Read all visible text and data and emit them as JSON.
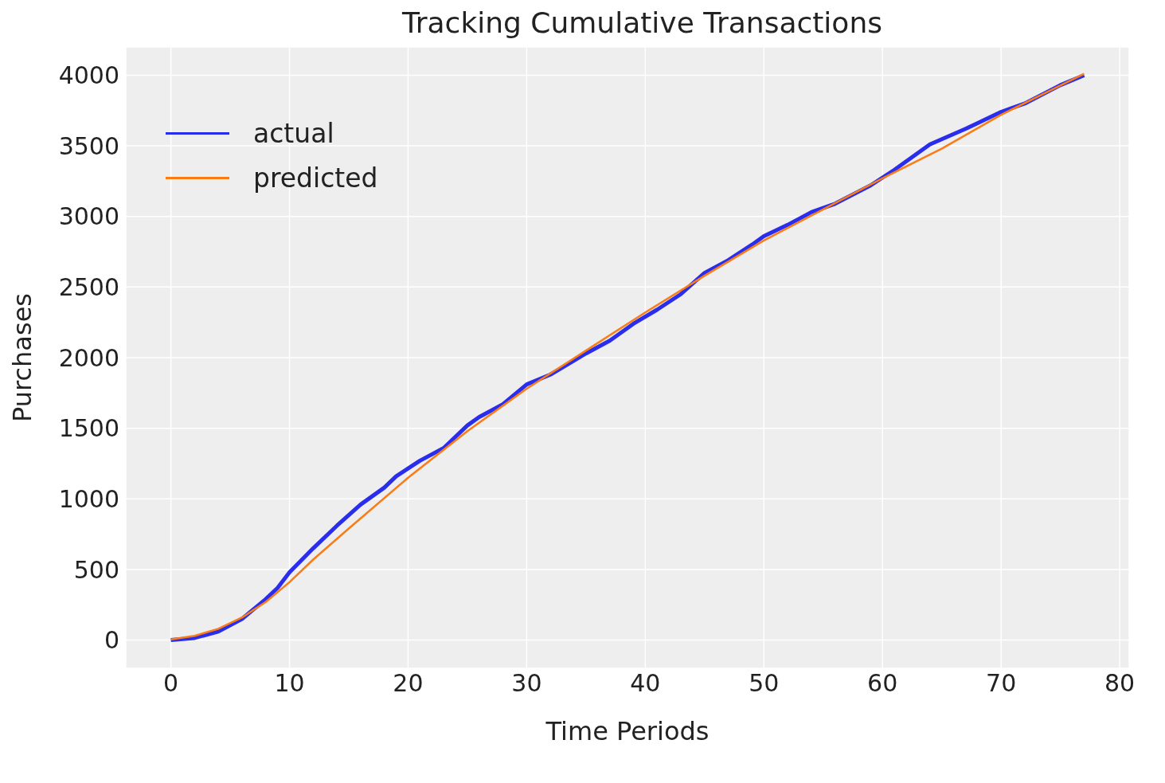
{
  "chart_data": {
    "type": "line",
    "title": "Tracking Cumulative Transactions",
    "xlabel": "Time Periods",
    "ylabel": "Purchases",
    "xlim": [
      -3.8,
      80.8
    ],
    "xticks": [
      0,
      10,
      20,
      30,
      40,
      50,
      60,
      70,
      80
    ],
    "ylim": [
      -200,
      4200
    ],
    "yticks": [
      0,
      500,
      1000,
      1500,
      2000,
      2500,
      3000,
      3500,
      4000
    ],
    "grid": true,
    "legend": "top left",
    "marker": "none",
    "line_style": "solid",
    "series": [
      {
        "name": "actual",
        "color": "#2a2eec",
        "x": [
          0,
          2,
          4,
          6,
          8,
          9,
          10,
          12,
          14,
          16,
          18,
          19,
          21,
          23,
          25,
          26,
          28,
          30,
          32,
          34,
          35,
          37,
          39,
          41,
          43,
          45,
          47,
          49,
          50,
          52,
          54,
          56,
          59,
          61,
          64,
          67,
          68,
          70,
          72,
          75,
          77
        ],
        "values": [
          0,
          15,
          60,
          150,
          290,
          370,
          480,
          650,
          810,
          960,
          1080,
          1160,
          1270,
          1360,
          1520,
          1580,
          1670,
          1810,
          1880,
          1980,
          2030,
          2120,
          2240,
          2340,
          2450,
          2600,
          2690,
          2800,
          2860,
          2940,
          3030,
          3090,
          3220,
          3330,
          3510,
          3620,
          3660,
          3740,
          3800,
          3930,
          4000
        ]
      },
      {
        "name": "predicted",
        "color": "#fa7c17",
        "x": [
          0,
          2,
          4,
          6,
          8,
          10,
          12,
          15,
          20,
          25,
          30,
          35,
          40,
          45,
          50,
          55,
          60,
          65,
          70,
          77
        ],
        "values": [
          5,
          30,
          80,
          160,
          270,
          410,
          570,
          790,
          1150,
          1480,
          1780,
          2050,
          2320,
          2580,
          2830,
          3050,
          3270,
          3480,
          3720,
          4010
        ]
      }
    ]
  }
}
